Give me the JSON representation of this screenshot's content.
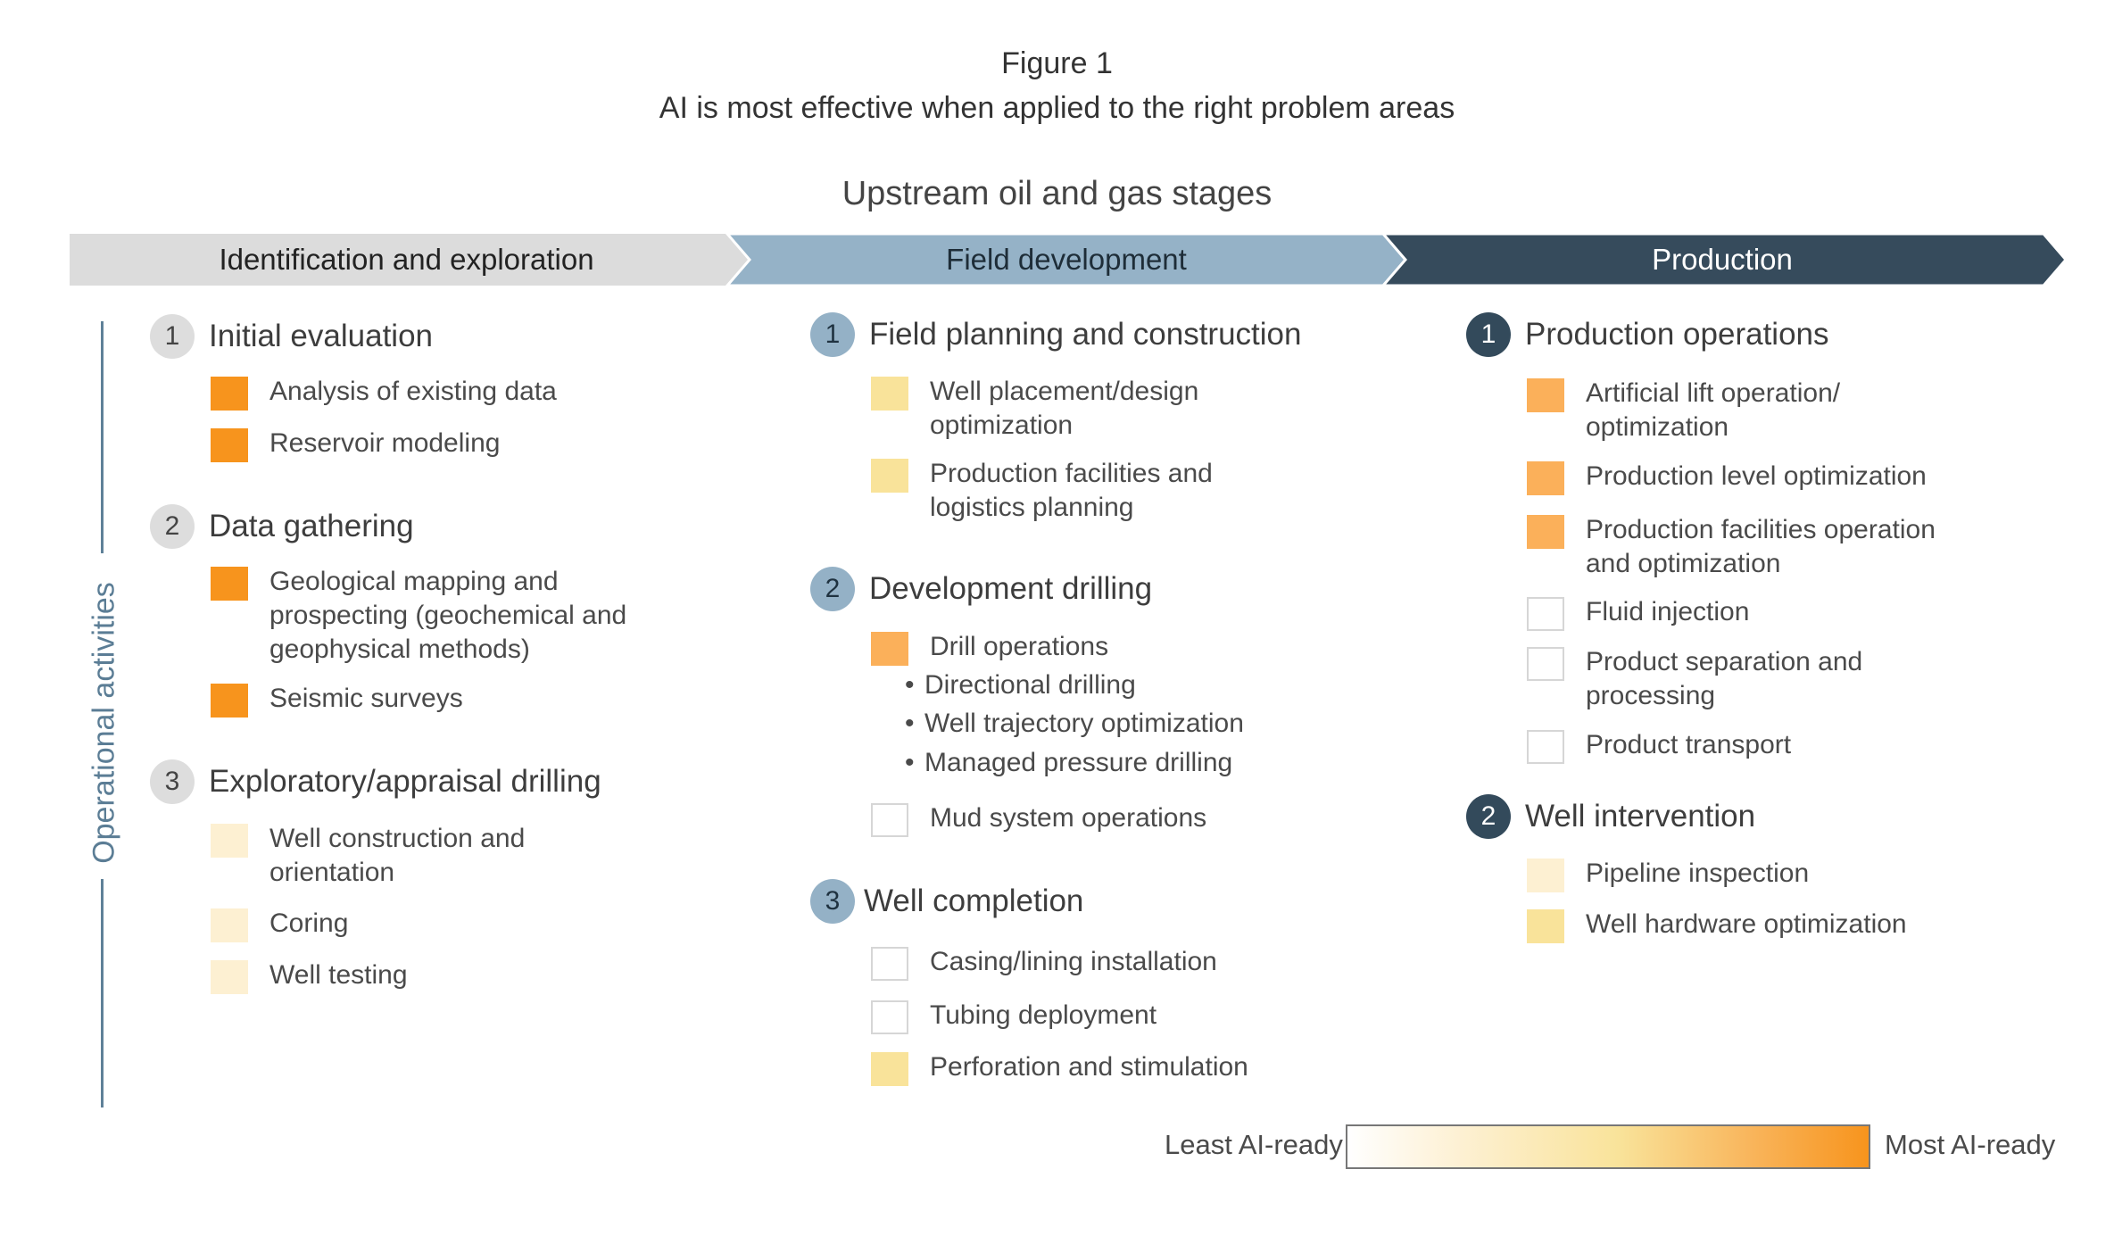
{
  "figure": {
    "label": "Figure 1",
    "subtitle": "AI is most effective when applied to the right problem areas"
  },
  "stages_title": "Upstream oil and gas stages",
  "stages": [
    {
      "label": "Identification and exploration",
      "color": "#dcdcdc"
    },
    {
      "label": "Field development",
      "color": "#95b2c7"
    },
    {
      "label": "Production",
      "color": "#364b5c"
    }
  ],
  "axis_label": "Operational activities",
  "colors": {
    "most_ready": "#f7941d",
    "high_ready": "#fbb05a",
    "medium_ready": "#f9e39a",
    "low_ready": "#fdf0d2",
    "not_ready": "#ffffff"
  },
  "columns": [
    {
      "groups": [
        {
          "number": "1",
          "title": "Initial evaluation",
          "items": [
            {
              "text": "Analysis of existing data",
              "level": "most_ready"
            },
            {
              "text": "Reservoir modeling",
              "level": "most_ready"
            }
          ]
        },
        {
          "number": "2",
          "title": "Data gathering",
          "items": [
            {
              "text": "Geological mapping and\nprospecting (geochemical and\ngeophysical methods)",
              "level": "most_ready"
            },
            {
              "text": "Seismic surveys",
              "level": "most_ready"
            }
          ]
        },
        {
          "number": "3",
          "title": "Exploratory/appraisal drilling",
          "items": [
            {
              "text": "Well construction and\norientation",
              "level": "low_ready"
            },
            {
              "text": "Coring",
              "level": "low_ready"
            },
            {
              "text": "Well testing",
              "level": "low_ready"
            }
          ]
        }
      ]
    },
    {
      "groups": [
        {
          "number": "1",
          "title": "Field planning and construction",
          "items": [
            {
              "text": "Well placement/design\noptimization",
              "level": "medium_ready"
            },
            {
              "text": "Production facilities and\nlogistics planning",
              "level": "medium_ready"
            }
          ]
        },
        {
          "number": "2",
          "title": "Development drilling",
          "items": [
            {
              "text": "Drill operations",
              "level": "high_ready"
            },
            {
              "text": "Mud system operations",
              "level": "not_ready"
            }
          ],
          "bullets": [
            "Directional drilling",
            "Well trajectory optimization",
            "Managed pressure drilling"
          ]
        },
        {
          "number": "3",
          "title": "Well completion",
          "items": [
            {
              "text": "Casing/lining installation",
              "level": "not_ready"
            },
            {
              "text": "Tubing deployment",
              "level": "not_ready"
            },
            {
              "text": "Perforation and stimulation",
              "level": "medium_ready"
            }
          ]
        }
      ]
    },
    {
      "groups": [
        {
          "number": "1",
          "title": "Production operations",
          "items": [
            {
              "text": "Artificial lift operation/\noptimization",
              "level": "high_ready"
            },
            {
              "text": "Production level optimization",
              "level": "high_ready"
            },
            {
              "text": "Production facilities operation\nand optimization",
              "level": "high_ready"
            },
            {
              "text": "Fluid injection",
              "level": "not_ready"
            },
            {
              "text": "Product separation and\nprocessing",
              "level": "not_ready"
            },
            {
              "text": "Product transport",
              "level": "not_ready"
            }
          ]
        },
        {
          "number": "2",
          "title": "Well intervention",
          "items": [
            {
              "text": "Pipeline inspection",
              "level": "low_ready"
            },
            {
              "text": "Well hardware optimization",
              "level": "medium_ready"
            }
          ]
        }
      ]
    }
  ],
  "legend": {
    "least": "Least AI-ready",
    "most": "Most AI-ready"
  }
}
